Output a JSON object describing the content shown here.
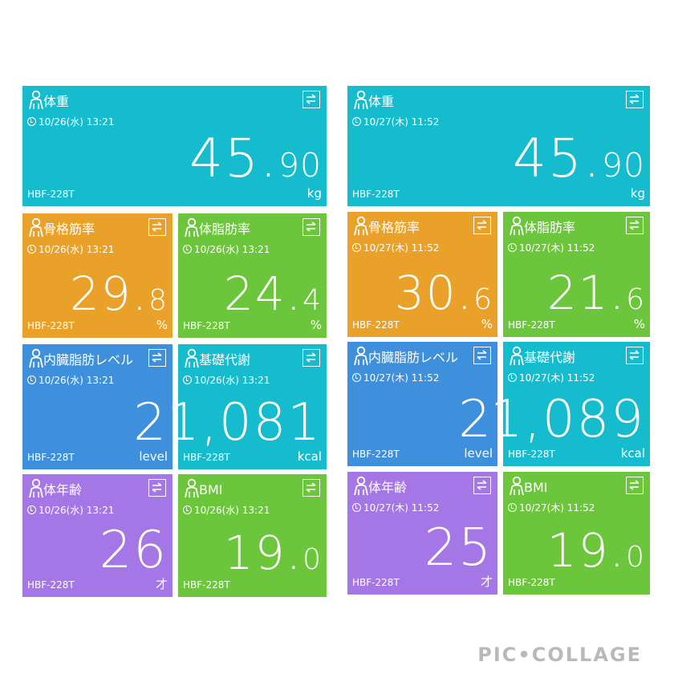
{
  "colors": {
    "weight": "#15bccd",
    "muscle": "#eaa12a",
    "fat": "#6bc63b",
    "visceral": "#3e8fdc",
    "basal": "#15bccd",
    "body_age": "#a576e5",
    "bmi": "#6bc63b"
  },
  "panels": [
    {
      "weight": {
        "title": "体重",
        "date": "10/26(水) 13:21",
        "value_main": "45.",
        "value_small": "90",
        "unit": "kg",
        "device": "HBF-228T"
      },
      "muscle": {
        "title": "骨格筋率",
        "date": "10/26(水) 13:21",
        "value_main": "29.",
        "value_small": "8",
        "unit": "%",
        "device": "HBF-228T"
      },
      "fat": {
        "title": "体脂肪率",
        "date": "10/26(水) 13:21",
        "value_main": "24.",
        "value_small": "4",
        "unit": "%",
        "device": "HBF-228T"
      },
      "visceral": {
        "title": "内臓脂肪レベル",
        "date": "10/26(水) 13:21",
        "value_main": "2",
        "value_small": "",
        "unit": "level",
        "device": "HBF-228T"
      },
      "basal": {
        "title": "基礎代謝",
        "date": "10/26(水) 13:21",
        "value_main": "1,081",
        "value_small": "",
        "unit": "kcal",
        "device": "HBF-228T"
      },
      "body_age": {
        "title": "体年齢",
        "date": "10/26(水) 13:21",
        "value_main": "26",
        "value_small": "",
        "unit": "才",
        "device": "HBF-228T"
      },
      "bmi": {
        "title": "BMI",
        "date": "10/26(水) 13:21",
        "value_main": "19.",
        "value_small": "0",
        "unit": "",
        "device": "HBF-228T"
      }
    },
    {
      "weight": {
        "title": "体重",
        "date": "10/27(木) 11:52",
        "value_main": "45.",
        "value_small": "90",
        "unit": "kg",
        "device": "HBF-228T"
      },
      "muscle": {
        "title": "骨格筋率",
        "date": "10/27(木) 11:52",
        "value_main": "30.",
        "value_small": "6",
        "unit": "%",
        "device": "HBF-228T"
      },
      "fat": {
        "title": "体脂肪率",
        "date": "10/27(木) 11:52",
        "value_main": "21.",
        "value_small": "6",
        "unit": "%",
        "device": "HBF-228T"
      },
      "visceral": {
        "title": "内臓脂肪レベル",
        "date": "10/27(木) 11:52",
        "value_main": "2",
        "value_small": "",
        "unit": "level",
        "device": "HBF-228T"
      },
      "basal": {
        "title": "基礎代謝",
        "date": "10/27(木) 11:52",
        "value_main": "1,089",
        "value_small": "",
        "unit": "kcal",
        "device": "HBF-228T"
      },
      "body_age": {
        "title": "体年齢",
        "date": "10/27(木) 11:52",
        "value_main": "25",
        "value_small": "",
        "unit": "才",
        "device": "HBF-228T"
      },
      "bmi": {
        "title": "BMI",
        "date": "10/27(木) 11:52",
        "value_main": "19.",
        "value_small": "0",
        "unit": "",
        "device": "HBF-228T"
      }
    }
  ],
  "watermark": "PIC•COLLAGE",
  "icons": {
    "person": "person-icon",
    "swap": "swap-arrows-icon",
    "clock": "clock-icon"
  }
}
